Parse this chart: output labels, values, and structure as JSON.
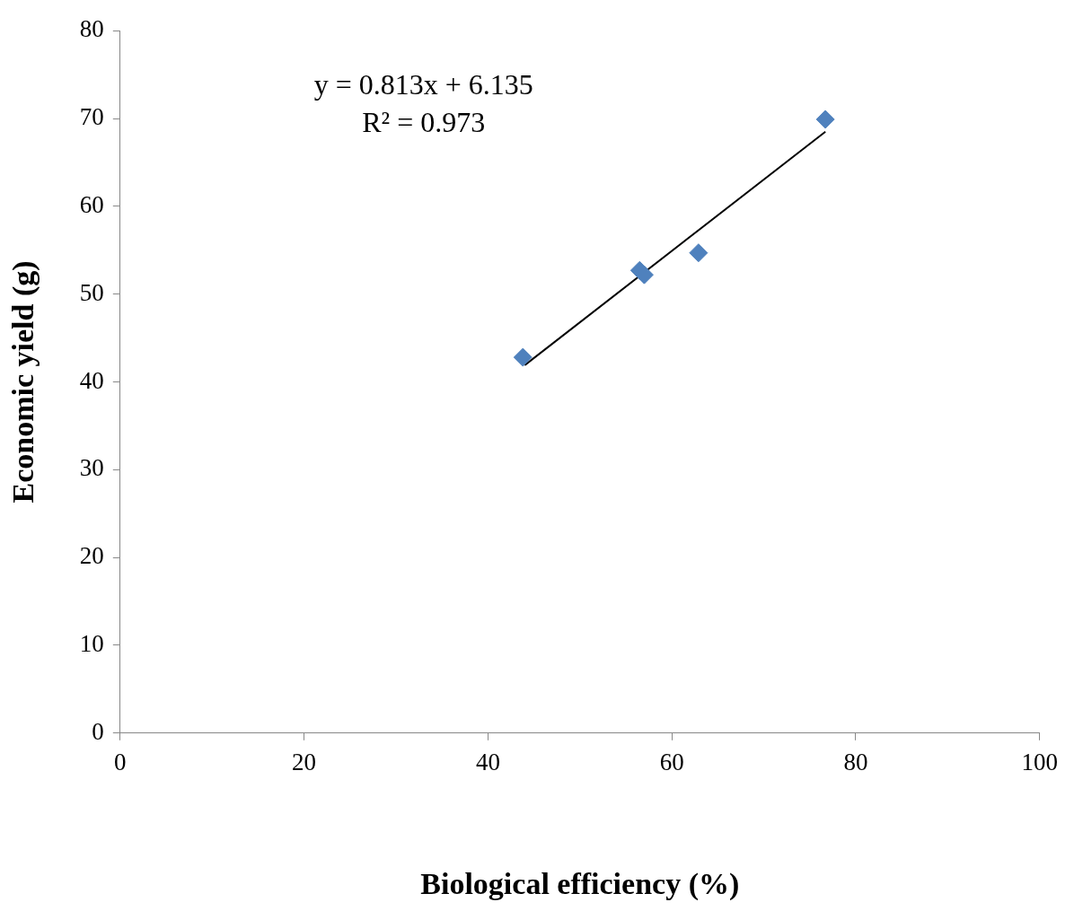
{
  "chart_data": {
    "type": "scatter",
    "xlabel": "Biological efficiency (%)",
    "ylabel": "Economic yield (g)",
    "annotations": [
      "y = 0.813x + 6.135",
      "R² = 0.973"
    ],
    "series": [
      {
        "color": "#4f81bd",
        "marker": "diamond",
        "x": [
          43.8,
          56.5,
          57.0,
          62.9,
          76.7
        ],
        "values": [
          42.8,
          52.7,
          52.2,
          54.7,
          69.9
        ]
      },
      {
        "type": "line",
        "color": "#000000",
        "marker": "none",
        "line_style": "solid",
        "x": [
          44,
          76.7
        ],
        "values": [
          41.9,
          68.5
        ]
      }
    ],
    "xlim": [
      0,
      100
    ],
    "xticks": [
      0,
      20,
      40,
      60,
      80,
      100
    ],
    "ylim": [
      0,
      80
    ],
    "yticks": [
      0,
      10,
      20,
      30,
      40,
      50,
      60,
      70,
      80
    ],
    "grid": false,
    "legend": false
  }
}
